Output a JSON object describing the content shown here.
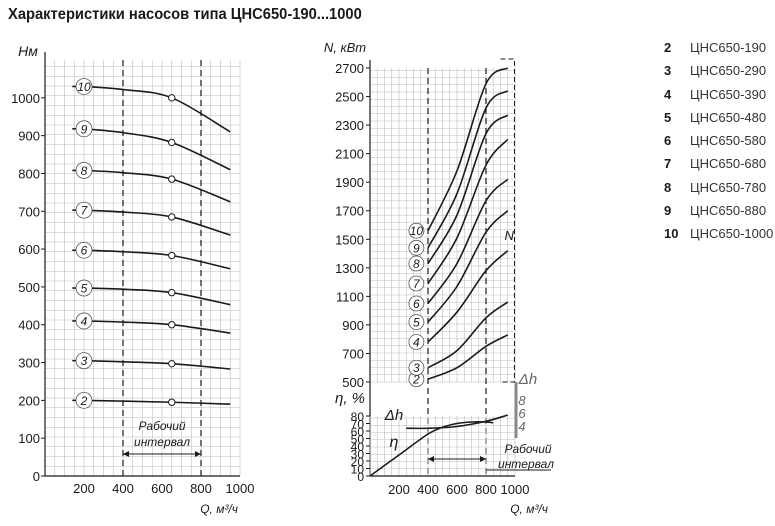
{
  "title": "Характеристики насосов типа ЦНС650-190...1000",
  "legend": [
    {
      "num": "2",
      "name": "ЦНС650-190"
    },
    {
      "num": "3",
      "name": "ЦНС650-290"
    },
    {
      "num": "4",
      "name": "ЦНС650-390"
    },
    {
      "num": "5",
      "name": "ЦНС650-480"
    },
    {
      "num": "6",
      "name": "ЦНС650-580"
    },
    {
      "num": "7",
      "name": "ЦНС650-680"
    },
    {
      "num": "8",
      "name": "ЦНС650-780"
    },
    {
      "num": "9",
      "name": "ЦНС650-880"
    },
    {
      "num": "10",
      "name": "ЦНС650-1000"
    }
  ],
  "chart_data": [
    {
      "type": "line",
      "ylabel": "Hм",
      "xlabel": "Q, м³/ч",
      "xlim": [
        0,
        1000
      ],
      "ylim": [
        0,
        1100
      ],
      "x_ticks": [
        "200",
        "400",
        "600",
        "800",
        "1000"
      ],
      "y_ticks": [
        "0",
        "100",
        "200",
        "300",
        "400",
        "500",
        "600",
        "700",
        "800",
        "900",
        "1000"
      ],
      "grid": true,
      "working_interval": {
        "label": "Рабочий интервал",
        "x_from": 400,
        "x_to": 800
      },
      "nominal_point_x": 650,
      "series": [
        {
          "name": "2",
          "points": [
            [
              200,
              200
            ],
            [
              400,
              198
            ],
            [
              650,
              195
            ],
            [
              950,
              190
            ]
          ]
        },
        {
          "name": "3",
          "points": [
            [
              200,
              305
            ],
            [
              400,
              302
            ],
            [
              650,
              297
            ],
            [
              950,
              283
            ]
          ]
        },
        {
          "name": "4",
          "points": [
            [
              200,
              410
            ],
            [
              400,
              407
            ],
            [
              650,
              400
            ],
            [
              950,
              378
            ]
          ]
        },
        {
          "name": "5",
          "points": [
            [
              200,
              497
            ],
            [
              400,
              494
            ],
            [
              650,
              485
            ],
            [
              950,
              453
            ]
          ]
        },
        {
          "name": "6",
          "points": [
            [
              200,
              597
            ],
            [
              400,
              593
            ],
            [
              650,
              583
            ],
            [
              950,
              548
            ]
          ]
        },
        {
          "name": "7",
          "points": [
            [
              200,
              703
            ],
            [
              400,
              698
            ],
            [
              650,
              685
            ],
            [
              950,
              637
            ]
          ]
        },
        {
          "name": "8",
          "points": [
            [
              200,
              808
            ],
            [
              400,
              802
            ],
            [
              650,
              785
            ],
            [
              950,
              725
            ]
          ]
        },
        {
          "name": "9",
          "points": [
            [
              200,
              918
            ],
            [
              400,
              908
            ],
            [
              650,
              882
            ],
            [
              950,
              810
            ]
          ]
        },
        {
          "name": "10",
          "points": [
            [
              200,
              1030
            ],
            [
              400,
              1022
            ],
            [
              650,
              1000
            ],
            [
              950,
              910
            ]
          ]
        }
      ]
    },
    {
      "type": "line",
      "ylabel": "N, кВт",
      "xlabel": "Q, м³/ч",
      "xlim": [
        0,
        1000
      ],
      "ylim": [
        500,
        2700
      ],
      "x_ticks": [
        "200",
        "400",
        "600",
        "800",
        "1000"
      ],
      "y_ticks": [
        "500",
        "700",
        "900",
        "1100",
        "1300",
        "1500",
        "1700",
        "1900",
        "2100",
        "2300",
        "2500",
        "2700"
      ],
      "grid": true,
      "series_marker": "N",
      "series": [
        {
          "name": "2",
          "points": [
            [
              400,
              520
            ],
            [
              600,
              600
            ],
            [
              800,
              750
            ],
            [
              950,
              830
            ]
          ]
        },
        {
          "name": "3",
          "points": [
            [
              400,
              600
            ],
            [
              600,
              720
            ],
            [
              800,
              950
            ],
            [
              950,
              1060
            ]
          ]
        },
        {
          "name": "4",
          "points": [
            [
              400,
              780
            ],
            [
              600,
              990
            ],
            [
              800,
              1280
            ],
            [
              950,
              1420
            ]
          ]
        },
        {
          "name": "5",
          "points": [
            [
              400,
              920
            ],
            [
              600,
              1170
            ],
            [
              800,
              1550
            ],
            [
              950,
              1700
            ]
          ]
        },
        {
          "name": "6",
          "points": [
            [
              400,
              1050
            ],
            [
              600,
              1330
            ],
            [
              800,
              1770
            ],
            [
              950,
              1920
            ]
          ]
        },
        {
          "name": "7",
          "points": [
            [
              400,
              1190
            ],
            [
              600,
              1510
            ],
            [
              800,
              2020
            ],
            [
              950,
              2200
            ]
          ]
        },
        {
          "name": "8",
          "points": [
            [
              400,
              1330
            ],
            [
              600,
              1670
            ],
            [
              800,
              2240
            ],
            [
              950,
              2370
            ]
          ]
        },
        {
          "name": "9",
          "points": [
            [
              400,
              1440
            ],
            [
              600,
              1820
            ],
            [
              800,
              2420
            ],
            [
              950,
              2540
            ]
          ]
        },
        {
          "name": "10",
          "points": [
            [
              400,
              1560
            ],
            [
              600,
              1980
            ],
            [
              800,
              2590
            ],
            [
              950,
              2700
            ]
          ]
        }
      ]
    },
    {
      "type": "line",
      "ylabel": "η, %",
      "xlabel": "Q, м³/ч",
      "xlim": [
        0,
        1000
      ],
      "ylim": [
        0,
        80
      ],
      "x_ticks": [
        "200",
        "400",
        "600",
        "800",
        "1000"
      ],
      "y_ticks": [
        "0",
        "10",
        "20",
        "30",
        "40",
        "50",
        "60",
        "70",
        "80"
      ],
      "dh_axis": {
        "label": "Δh",
        "ticks": [
          "8",
          "6",
          "4"
        ]
      },
      "working_interval": {
        "label": "Рабочий интервал",
        "x_from": 400,
        "x_to": 800
      },
      "series": [
        {
          "name": "η",
          "points": [
            [
              0,
              0
            ],
            [
              200,
              28
            ],
            [
              400,
              56
            ],
            [
              500,
              65
            ],
            [
              600,
              70
            ],
            [
              700,
              72
            ],
            [
              800,
              72
            ],
            [
              850,
              71
            ]
          ]
        },
        {
          "name": "Δh",
          "points": [
            [
              250,
              4.2
            ],
            [
              400,
              4.2
            ],
            [
              600,
              4.4
            ],
            [
              800,
              5
            ],
            [
              950,
              5.7
            ]
          ]
        }
      ]
    }
  ]
}
